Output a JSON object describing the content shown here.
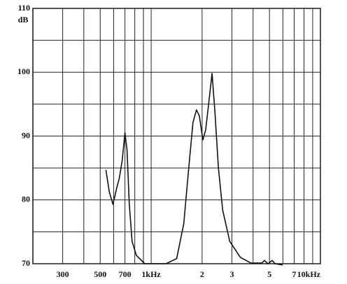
{
  "chart_data": {
    "type": "line",
    "y_unit": "dB",
    "xscale": "log",
    "grid": true,
    "xlim": [
      200,
      10000
    ],
    "ylim": [
      70,
      110
    ],
    "xticks": [
      300,
      500,
      700,
      {
        "value": 1000,
        "label": "1kHz"
      },
      {
        "value": 2000,
        "label": "2"
      },
      {
        "value": 3000,
        "label": "3"
      },
      {
        "value": 5000,
        "label": "5"
      },
      {
        "value": 7000,
        "label": "7"
      },
      {
        "value": 10000,
        "label": "10kHz"
      }
    ],
    "xminor": [
      400,
      600,
      800,
      900,
      4000,
      6000,
      8000,
      9000
    ],
    "yticks": [
      70,
      80,
      90,
      100,
      110
    ],
    "yminor": [
      75,
      85,
      95,
      105
    ],
    "x": [
      540,
      566,
      595,
      624,
      648,
      674,
      700,
      720,
      742,
      771,
      817,
      917,
      1224,
      1414,
      1557,
      1667,
      1766,
      1852,
      1925,
      2020,
      2099,
      2182,
      2290,
      2380,
      2497,
      2645,
      2912,
      3366,
      3888,
      4494,
      4670,
      4898,
      5190,
      5393,
      5990
    ],
    "series": [
      {
        "color": "#111111",
        "values": [
          84.7,
          81.2,
          79.3,
          81.7,
          83.4,
          86.1,
          90.5,
          87.8,
          79.5,
          73.5,
          71.3,
          70,
          70,
          70.8,
          76.2,
          85,
          92.1,
          94.1,
          93.2,
          89.4,
          91,
          94.9,
          99.8,
          93.8,
          85,
          78.4,
          73.5,
          71,
          70.1,
          70.1,
          70.5,
          70,
          70.5,
          70,
          69.8
        ]
      }
    ]
  }
}
